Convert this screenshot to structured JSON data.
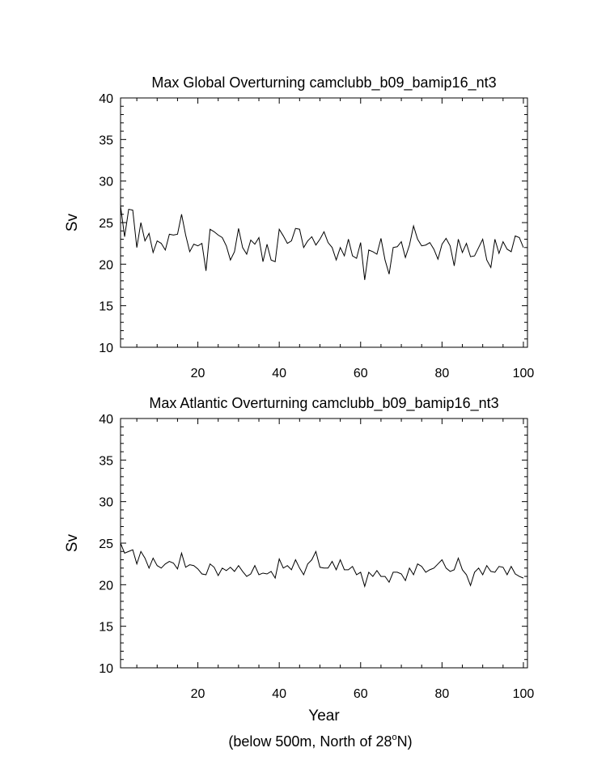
{
  "chart_data": [
    {
      "type": "line",
      "title": "Max Global Overturning camclubb_b09_bamip16_nt3",
      "xlabel": "",
      "ylabel": "Sv",
      "xlim": [
        1,
        101
      ],
      "ylim": [
        10,
        40
      ],
      "x_ticks": [
        "20",
        "40",
        "60",
        "80",
        "100"
      ],
      "y_ticks": [
        "10",
        "15",
        "20",
        "25",
        "30",
        "35",
        "40"
      ],
      "line_color": "#000000",
      "grid": false,
      "x_start": 1,
      "values": [
        27.0,
        23.3,
        26.6,
        26.5,
        22.0,
        25.0,
        22.8,
        23.7,
        21.4,
        22.8,
        22.5,
        21.7,
        23.6,
        23.5,
        23.6,
        26.0,
        23.5,
        21.5,
        22.4,
        22.2,
        22.5,
        19.2,
        24.2,
        23.9,
        23.5,
        23.2,
        22.2,
        20.5,
        21.5,
        24.3,
        22.0,
        21.2,
        22.9,
        22.4,
        23.2,
        20.3,
        22.4,
        20.5,
        20.3,
        24.2,
        23.4,
        22.5,
        22.8,
        24.3,
        24.2,
        22.0,
        22.8,
        23.3,
        22.3,
        23.0,
        23.9,
        22.6,
        22.0,
        20.5,
        22.0,
        21.0,
        23.0,
        21.0,
        20.7,
        22.6,
        18.1,
        21.7,
        21.5,
        21.2,
        23.1,
        20.5,
        18.8,
        22.0,
        22.1,
        22.7,
        20.8,
        22.3,
        24.6,
        23.0,
        22.2,
        22.3,
        22.6,
        21.8,
        20.6,
        22.4,
        23.1,
        22.2,
        19.8,
        23.0,
        21.4,
        22.5,
        20.9,
        21.0,
        22.0,
        23.0,
        20.5,
        19.6,
        23.0,
        21.3,
        22.7,
        21.8,
        21.5,
        23.4,
        23.2,
        22.0
      ]
    },
    {
      "type": "line",
      "title": "Max Atlantic Overturning camclubb_b09_bamip16_nt3",
      "xlabel": "Year",
      "ylabel": "Sv",
      "xlim": [
        1,
        101
      ],
      "ylim": [
        10,
        40
      ],
      "x_ticks": [
        "20",
        "40",
        "60",
        "80",
        "100"
      ],
      "y_ticks": [
        "10",
        "15",
        "20",
        "25",
        "30",
        "35",
        "40"
      ],
      "line_color": "#000000",
      "grid": false,
      "x_start": 1,
      "values": [
        25.0,
        23.8,
        24.0,
        24.2,
        22.5,
        24.0,
        23.2,
        22.0,
        23.2,
        22.3,
        22.0,
        22.5,
        22.8,
        22.6,
        21.9,
        23.8,
        22.1,
        22.4,
        22.3,
        21.9,
        21.3,
        21.2,
        22.5,
        22.1,
        21.1,
        22.0,
        21.7,
        22.1,
        21.6,
        22.3,
        21.6,
        21.0,
        21.3,
        22.3,
        21.2,
        21.4,
        21.3,
        21.6,
        20.8,
        23.1,
        22.0,
        22.3,
        21.8,
        23.0,
        22.0,
        21.2,
        22.5,
        23.0,
        24.0,
        22.1,
        22.0,
        22.0,
        22.8,
        21.8,
        23.0,
        21.8,
        21.8,
        22.2,
        21.2,
        21.5,
        19.8,
        21.5,
        21.0,
        21.7,
        21.0,
        21.0,
        20.3,
        21.5,
        21.5,
        21.3,
        20.5,
        22.0,
        21.2,
        22.5,
        22.2,
        21.5,
        21.8,
        22.0,
        22.5,
        23.0,
        22.0,
        21.6,
        21.8,
        23.2,
        21.8,
        21.2,
        19.9,
        21.5,
        22.0,
        21.2,
        22.3,
        21.6,
        21.5,
        22.2,
        22.1,
        21.2,
        22.2,
        21.3,
        21.0,
        20.8
      ]
    }
  ],
  "footnote": {
    "prefix": "(below 500m, North of 28",
    "superscript": "o",
    "suffix": "N)"
  }
}
